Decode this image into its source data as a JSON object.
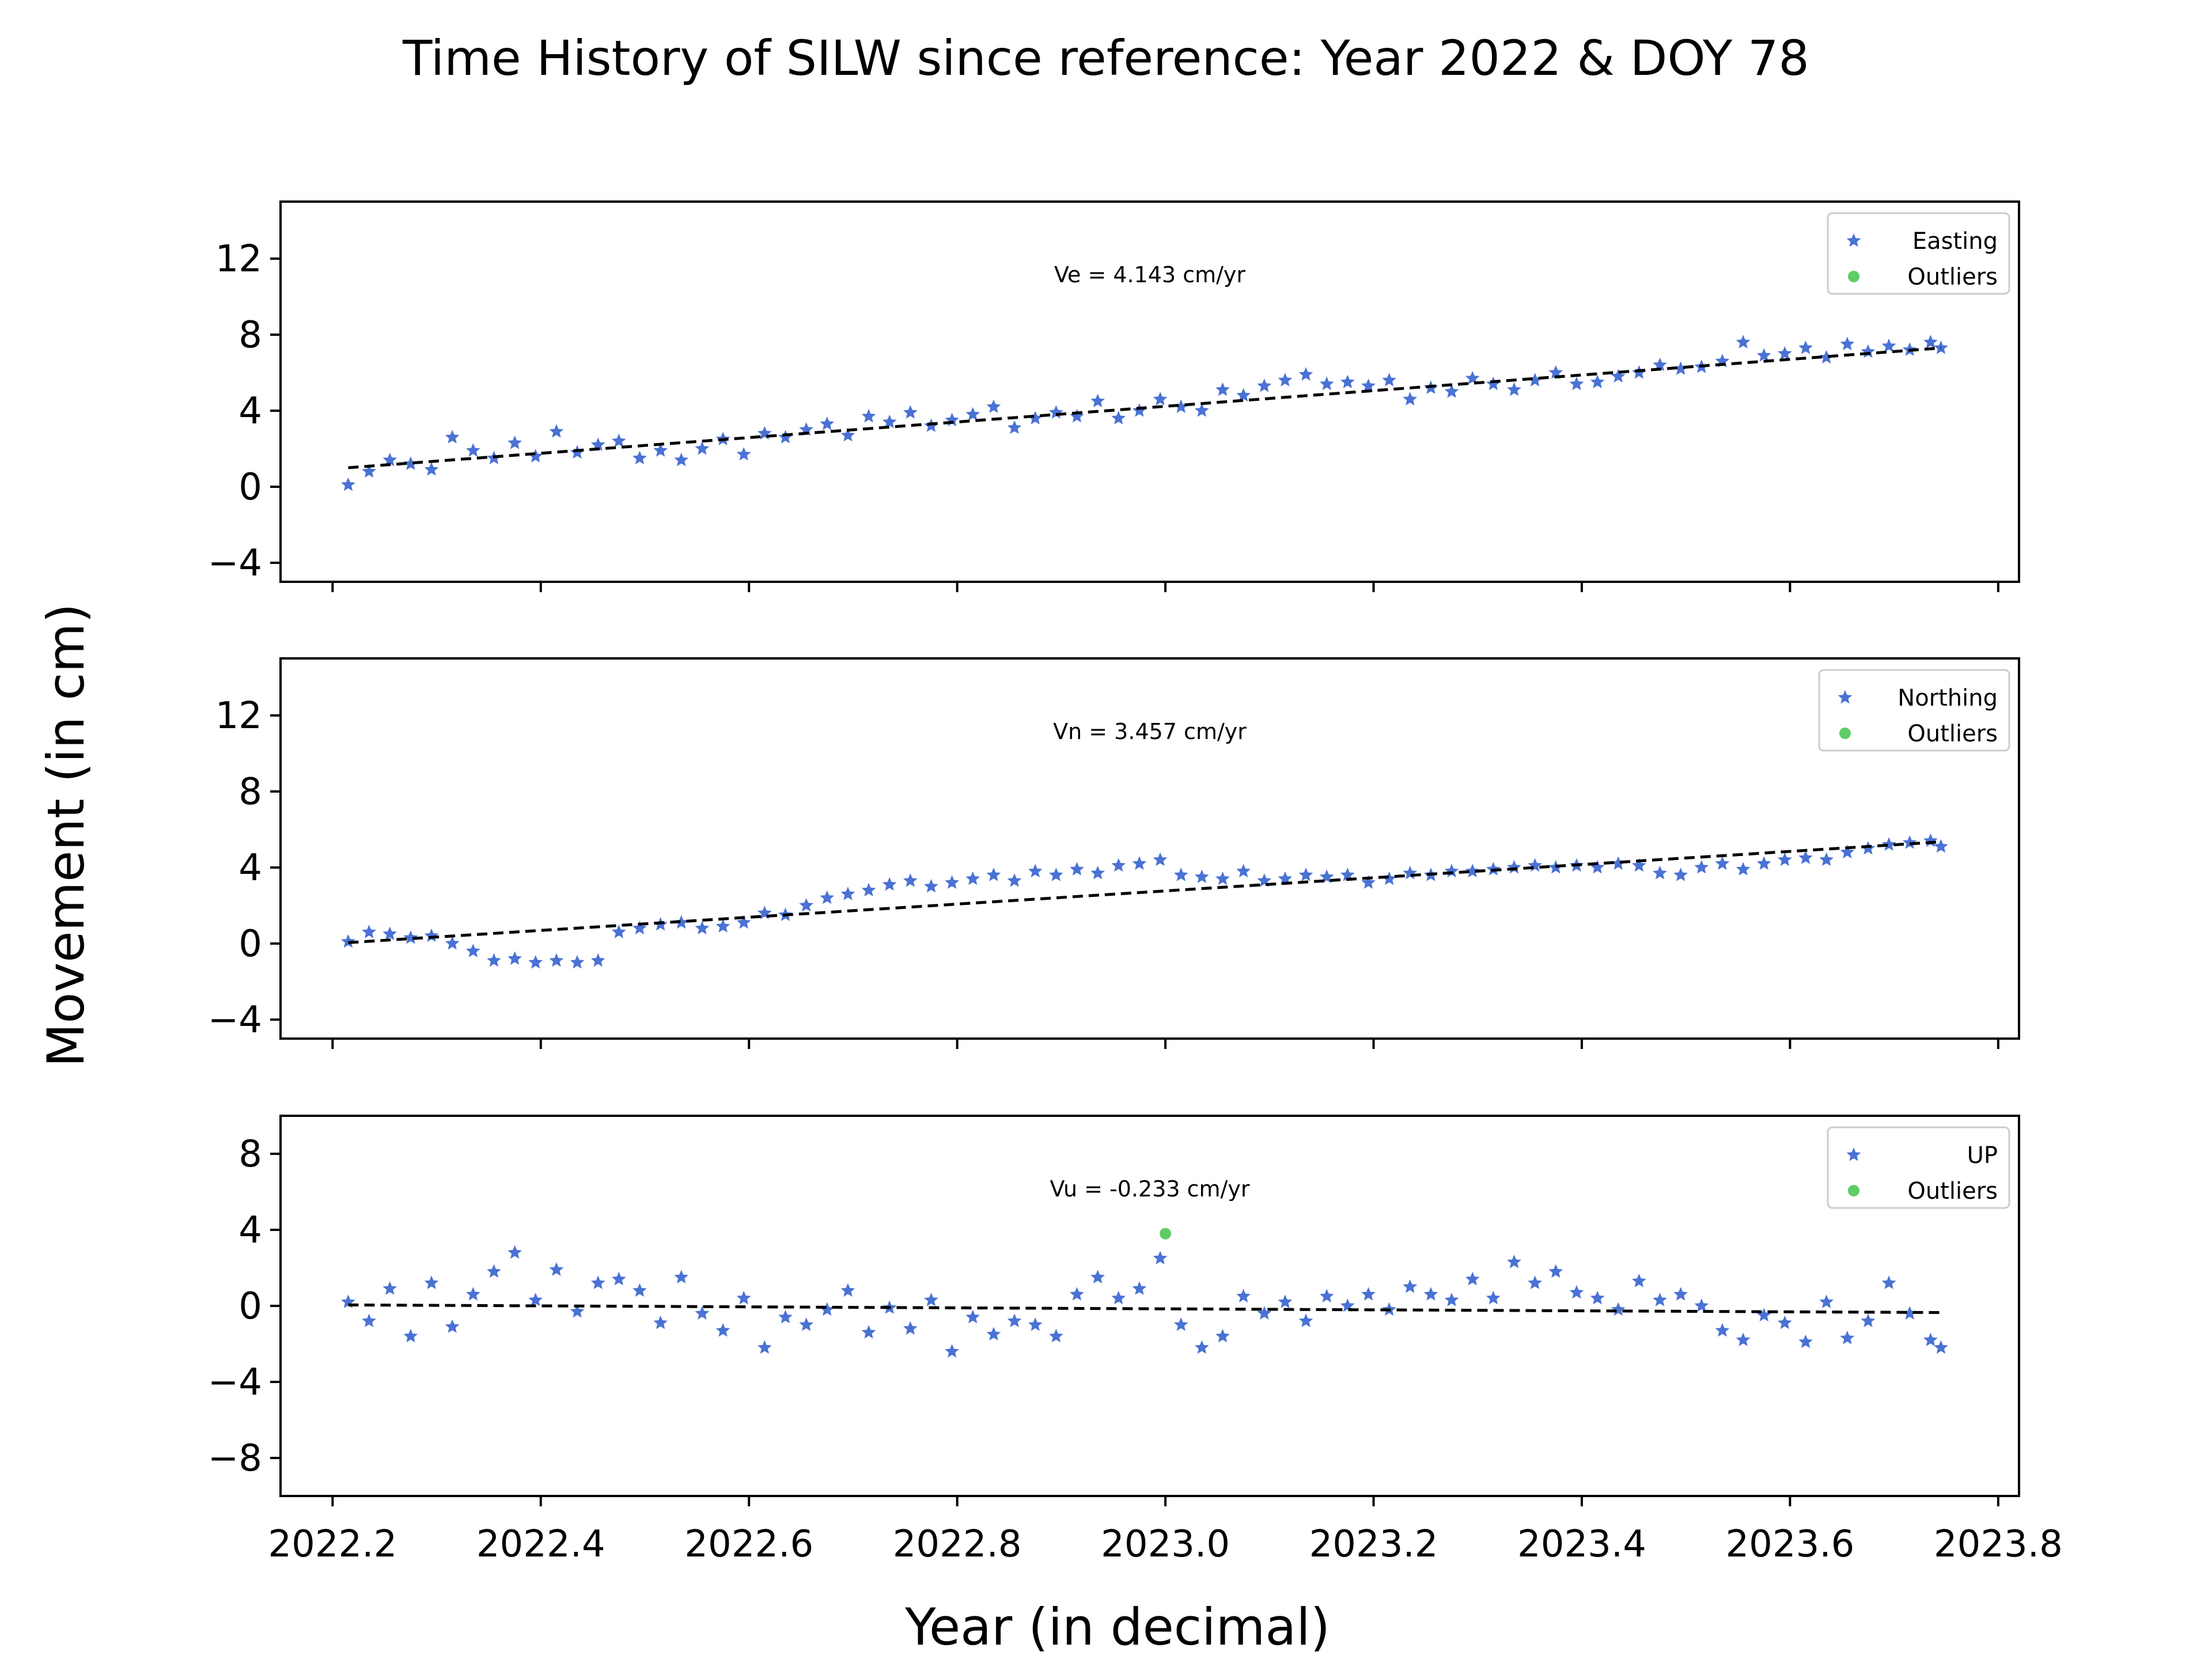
{
  "figure": {
    "title": "Time History of SILW since reference: Year 2022 & DOY 78",
    "xlabel": "Year (in decimal)",
    "ylabel": "Movement (in cm)"
  },
  "colors": {
    "data_points": "#4a72d4",
    "outliers": "#5fcc66",
    "trend_line": "#000000"
  },
  "chart_data": [
    {
      "type": "scatter",
      "component": "easting",
      "xlim": [
        2022.15,
        2023.82
      ],
      "ylim": [
        -5,
        15
      ],
      "xticks": [
        "2022.2",
        "2022.4",
        "2022.6",
        "2022.8",
        "2023.0",
        "2023.2",
        "2023.4",
        "2023.6",
        "2023.8"
      ],
      "xtick_values": [
        2022.2,
        2022.4,
        2022.6,
        2022.8,
        2023.0,
        2023.2,
        2023.4,
        2023.6,
        2023.8
      ],
      "yticks": [
        "−4",
        "0",
        "4",
        "8",
        "12"
      ],
      "ytick_values": [
        -4,
        0,
        4,
        8,
        12
      ],
      "show_xtick_labels": false,
      "annotation": "Ve =  4.143 cm/yr",
      "legend_position": "top-right",
      "legend": [
        "Easting",
        "Outliers"
      ],
      "trend": {
        "x": [
          2022.215,
          2023.745
        ],
        "y": [
          1.0,
          7.3
        ]
      },
      "outliers": [],
      "series": [
        {
          "name": "Easting",
          "x": [
            2022.215,
            2022.235,
            2022.255,
            2022.275,
            2022.295,
            2022.315,
            2022.335,
            2022.355,
            2022.375,
            2022.395,
            2022.415,
            2022.435,
            2022.455,
            2022.475,
            2022.495,
            2022.515,
            2022.535,
            2022.555,
            2022.575,
            2022.595,
            2022.615,
            2022.635,
            2022.655,
            2022.675,
            2022.695,
            2022.715,
            2022.735,
            2022.755,
            2022.775,
            2022.795,
            2022.815,
            2022.835,
            2022.855,
            2022.875,
            2022.895,
            2022.915,
            2022.935,
            2022.955,
            2022.975,
            2022.995,
            2023.015,
            2023.035,
            2023.055,
            2023.075,
            2023.095,
            2023.115,
            2023.135,
            2023.155,
            2023.175,
            2023.195,
            2023.215,
            2023.235,
            2023.255,
            2023.275,
            2023.295,
            2023.315,
            2023.335,
            2023.355,
            2023.375,
            2023.395,
            2023.415,
            2023.435,
            2023.455,
            2023.475,
            2023.495,
            2023.515,
            2023.535,
            2023.555,
            2023.575,
            2023.595,
            2023.615,
            2023.635,
            2023.655,
            2023.675,
            2023.695,
            2023.715,
            2023.735,
            2023.745
          ],
          "y": [
            0.1,
            0.8,
            1.4,
            1.2,
            0.9,
            2.6,
            1.9,
            1.5,
            2.3,
            1.6,
            2.9,
            1.8,
            2.2,
            2.4,
            1.5,
            1.9,
            1.4,
            2.0,
            2.5,
            1.7,
            2.8,
            2.6,
            3.0,
            3.3,
            2.7,
            3.7,
            3.4,
            3.9,
            3.2,
            3.5,
            3.8,
            4.2,
            3.1,
            3.6,
            3.9,
            3.7,
            4.5,
            3.6,
            4.0,
            4.6,
            4.2,
            4.0,
            5.1,
            4.8,
            5.3,
            5.6,
            5.9,
            5.4,
            5.5,
            5.3,
            5.6,
            4.6,
            5.2,
            5.0,
            5.7,
            5.4,
            5.1,
            5.6,
            6.0,
            5.4,
            5.5,
            5.8,
            6.0,
            6.4,
            6.2,
            6.3,
            6.6,
            7.6,
            6.9,
            7.0,
            7.3,
            6.8,
            7.5,
            7.1,
            7.4,
            7.2,
            7.6,
            7.3
          ]
        }
      ]
    },
    {
      "type": "scatter",
      "component": "northing",
      "xlim": [
        2022.15,
        2023.82
      ],
      "ylim": [
        -5,
        15
      ],
      "xticks": [
        "2022.2",
        "2022.4",
        "2022.6",
        "2022.8",
        "2023.0",
        "2023.2",
        "2023.4",
        "2023.6",
        "2023.8"
      ],
      "xtick_values": [
        2022.2,
        2022.4,
        2022.6,
        2022.8,
        2023.0,
        2023.2,
        2023.4,
        2023.6,
        2023.8
      ],
      "yticks": [
        "−4",
        "0",
        "4",
        "8",
        "12"
      ],
      "ytick_values": [
        -4,
        0,
        4,
        8,
        12
      ],
      "show_xtick_labels": false,
      "annotation": "Vn =  3.457 cm/yr",
      "legend_position": "top-right",
      "legend": [
        "Northing",
        "Outliers"
      ],
      "trend": {
        "x": [
          2022.215,
          2023.745
        ],
        "y": [
          0.05,
          5.35
        ]
      },
      "outliers": [],
      "series": [
        {
          "name": "Northing",
          "x": [
            2022.215,
            2022.235,
            2022.255,
            2022.275,
            2022.295,
            2022.315,
            2022.335,
            2022.355,
            2022.375,
            2022.395,
            2022.415,
            2022.435,
            2022.455,
            2022.475,
            2022.495,
            2022.515,
            2022.535,
            2022.555,
            2022.575,
            2022.595,
            2022.615,
            2022.635,
            2022.655,
            2022.675,
            2022.695,
            2022.715,
            2022.735,
            2022.755,
            2022.775,
            2022.795,
            2022.815,
            2022.835,
            2022.855,
            2022.875,
            2022.895,
            2022.915,
            2022.935,
            2022.955,
            2022.975,
            2022.995,
            2023.015,
            2023.035,
            2023.055,
            2023.075,
            2023.095,
            2023.115,
            2023.135,
            2023.155,
            2023.175,
            2023.195,
            2023.215,
            2023.235,
            2023.255,
            2023.275,
            2023.295,
            2023.315,
            2023.335,
            2023.355,
            2023.375,
            2023.395,
            2023.415,
            2023.435,
            2023.455,
            2023.475,
            2023.495,
            2023.515,
            2023.535,
            2023.555,
            2023.575,
            2023.595,
            2023.615,
            2023.635,
            2023.655,
            2023.675,
            2023.695,
            2023.715,
            2023.735,
            2023.745
          ],
          "y": [
            0.1,
            0.6,
            0.5,
            0.3,
            0.4,
            0.0,
            -0.4,
            -0.9,
            -0.8,
            -1.0,
            -0.9,
            -1.0,
            -0.9,
            0.6,
            0.8,
            1.0,
            1.1,
            0.8,
            0.9,
            1.1,
            1.6,
            1.5,
            2.0,
            2.4,
            2.6,
            2.8,
            3.1,
            3.3,
            3.0,
            3.2,
            3.4,
            3.6,
            3.3,
            3.8,
            3.6,
            3.9,
            3.7,
            4.1,
            4.2,
            4.4,
            3.6,
            3.5,
            3.4,
            3.8,
            3.3,
            3.4,
            3.6,
            3.5,
            3.6,
            3.2,
            3.4,
            3.7,
            3.6,
            3.8,
            3.8,
            3.9,
            4.0,
            4.1,
            4.0,
            4.1,
            4.0,
            4.2,
            4.1,
            3.7,
            3.6,
            4.0,
            4.2,
            3.9,
            4.2,
            4.4,
            4.5,
            4.4,
            4.8,
            5.0,
            5.2,
            5.3,
            5.4,
            5.1
          ]
        }
      ]
    },
    {
      "type": "scatter",
      "component": "up",
      "xlim": [
        2022.15,
        2023.82
      ],
      "ylim": [
        -10,
        10
      ],
      "xticks": [
        "2022.2",
        "2022.4",
        "2022.6",
        "2022.8",
        "2023.0",
        "2023.2",
        "2023.4",
        "2023.6",
        "2023.8"
      ],
      "xtick_values": [
        2022.2,
        2022.4,
        2022.6,
        2022.8,
        2023.0,
        2023.2,
        2023.4,
        2023.6,
        2023.8
      ],
      "yticks": [
        "−8",
        "−4",
        "0",
        "4",
        "8"
      ],
      "ytick_values": [
        -8,
        -4,
        0,
        4,
        8
      ],
      "show_xtick_labels": true,
      "annotation": "Vu = -0.233 cm/yr",
      "legend_position": "top-right",
      "legend": [
        "UP",
        "Outliers"
      ],
      "trend": {
        "x": [
          2022.215,
          2023.745
        ],
        "y": [
          0.05,
          -0.35
        ]
      },
      "outliers": [
        {
          "x": 2023.0,
          "y": 3.8
        }
      ],
      "series": [
        {
          "name": "UP",
          "x": [
            2022.215,
            2022.235,
            2022.255,
            2022.275,
            2022.295,
            2022.315,
            2022.335,
            2022.355,
            2022.375,
            2022.395,
            2022.415,
            2022.435,
            2022.455,
            2022.475,
            2022.495,
            2022.515,
            2022.535,
            2022.555,
            2022.575,
            2022.595,
            2022.615,
            2022.635,
            2022.655,
            2022.675,
            2022.695,
            2022.715,
            2022.735,
            2022.755,
            2022.775,
            2022.795,
            2022.815,
            2022.835,
            2022.855,
            2022.875,
            2022.895,
            2022.915,
            2022.935,
            2022.955,
            2022.975,
            2022.995,
            2023.015,
            2023.035,
            2023.055,
            2023.075,
            2023.095,
            2023.115,
            2023.135,
            2023.155,
            2023.175,
            2023.195,
            2023.215,
            2023.235,
            2023.255,
            2023.275,
            2023.295,
            2023.315,
            2023.335,
            2023.355,
            2023.375,
            2023.395,
            2023.415,
            2023.435,
            2023.455,
            2023.475,
            2023.495,
            2023.515,
            2023.535,
            2023.555,
            2023.575,
            2023.595,
            2023.615,
            2023.635,
            2023.655,
            2023.675,
            2023.695,
            2023.715,
            2023.735,
            2023.745
          ],
          "y": [
            0.2,
            -0.8,
            0.9,
            -1.6,
            1.2,
            -1.1,
            0.6,
            1.8,
            2.8,
            0.3,
            1.9,
            -0.3,
            1.2,
            1.4,
            0.8,
            -0.9,
            1.5,
            -0.4,
            -1.3,
            0.4,
            -2.2,
            -0.6,
            -1.0,
            -0.2,
            0.8,
            -1.4,
            -0.1,
            -1.2,
            0.3,
            -2.4,
            -0.6,
            -1.5,
            -0.8,
            -1.0,
            -1.6,
            0.6,
            1.5,
            0.4,
            0.9,
            2.5,
            -1.0,
            -2.2,
            -1.6,
            0.5,
            -0.4,
            0.2,
            -0.8,
            0.5,
            0.0,
            0.6,
            -0.2,
            1.0,
            0.6,
            0.3,
            1.4,
            0.4,
            2.3,
            1.2,
            1.8,
            0.7,
            0.4,
            -0.2,
            1.3,
            0.3,
            0.6,
            0.0,
            -1.3,
            -1.8,
            -0.5,
            -0.9,
            -1.9,
            0.2,
            -1.7,
            -0.8,
            1.2,
            -0.4,
            -1.8,
            -2.2
          ]
        }
      ]
    }
  ]
}
